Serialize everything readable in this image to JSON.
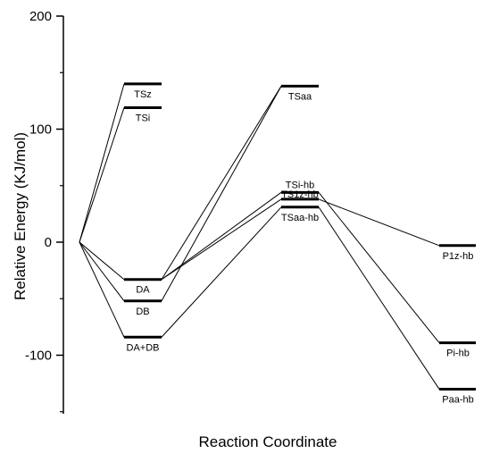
{
  "chart_data": {
    "type": "line",
    "title": "",
    "xlabel": "Reaction Coordinate",
    "ylabel": "Relative Energy (KJ/mol)",
    "ylim": [
      -150,
      200
    ],
    "yticks": [
      {
        "value": 200,
        "label": "200"
      },
      {
        "value": 100,
        "label": "100"
      },
      {
        "value": 0,
        "label": "0"
      },
      {
        "value": -100,
        "label": "-100"
      }
    ],
    "x_stages": [
      0,
      1,
      2,
      3
    ],
    "grid": false,
    "levels": [
      {
        "name": "TSz",
        "stage": 1,
        "energy": 140,
        "label_side": "below"
      },
      {
        "name": "TSi",
        "stage": 1,
        "energy": 119,
        "label_side": "below"
      },
      {
        "name": "DA",
        "stage": 1,
        "energy": -33,
        "label_side": "below"
      },
      {
        "name": "DB",
        "stage": 1,
        "energy": -52,
        "label_side": "below"
      },
      {
        "name": "DA+DB",
        "stage": 1,
        "energy": -84,
        "label_side": "below"
      },
      {
        "name": "TSaa",
        "stage": 2,
        "energy": 138,
        "label_side": "below"
      },
      {
        "name": "TSi-hb",
        "stage": 2,
        "energy": 44,
        "label_side": "above"
      },
      {
        "name": "TS1z-hb",
        "stage": 2,
        "energy": 38,
        "label_side": "center"
      },
      {
        "name": "TSaa-hb",
        "stage": 2,
        "energy": 31,
        "label_side": "below"
      },
      {
        "name": "P1z-hb",
        "stage": 3,
        "energy": -3,
        "label_side": "below"
      },
      {
        "name": "Pi-hb",
        "stage": 3,
        "energy": -89,
        "label_side": "below"
      },
      {
        "name": "Paa-hb",
        "stage": 3,
        "energy": -130,
        "label_side": "below"
      }
    ],
    "start": {
      "stage": 0,
      "energy": 0
    },
    "connections": [
      [
        "start",
        "TSz"
      ],
      [
        "start",
        "TSi"
      ],
      [
        "start",
        "DA"
      ],
      [
        "start",
        "DB"
      ],
      [
        "start",
        "DA+DB"
      ],
      [
        "DA",
        "TSaa"
      ],
      [
        "DB",
        "TSaa"
      ],
      [
        "DA",
        "TSi-hb"
      ],
      [
        "DA",
        "TS1z-hb"
      ],
      [
        "DA+DB",
        "TSaa-hb"
      ],
      [
        "TS1z-hb",
        "P1z-hb"
      ],
      [
        "TSi-hb",
        "Pi-hb"
      ],
      [
        "TSaa-hb",
        "Paa-hb"
      ]
    ]
  }
}
